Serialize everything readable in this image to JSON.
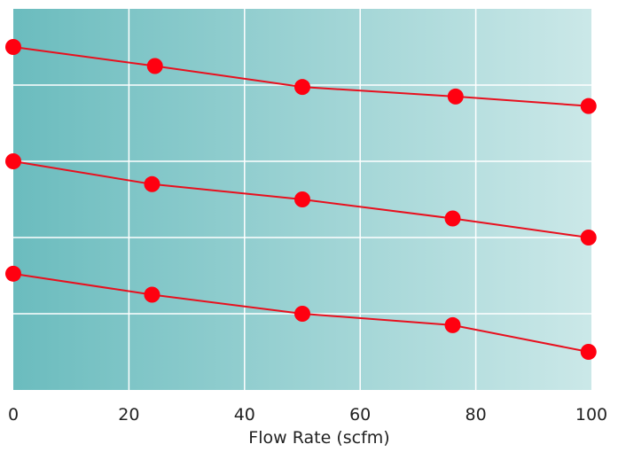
{
  "chart_data": {
    "type": "line",
    "title": "",
    "xlabel": "Flow Rate (scfm)",
    "ylabel": "",
    "xlim": [
      0,
      100
    ],
    "ylim": [
      0,
      100
    ],
    "x_ticks": [
      0,
      20,
      40,
      60,
      80,
      100
    ],
    "x_tick_labels": [
      "0",
      "20",
      "40",
      "60",
      "80",
      "100"
    ],
    "y_gridlines": [
      20,
      40,
      60,
      80,
      100
    ],
    "grid": true,
    "legend": "none",
    "colors": {
      "line": "#e8101e",
      "marker": "#ff0010",
      "background_left": "#6bbcbe",
      "background_right": "#cbe8e8",
      "grid": "#ffffff",
      "text": "#222222"
    },
    "series": [
      {
        "x": [
          0,
          24.5,
          50,
          76.5,
          99.5
        ],
        "y": [
          90,
          85,
          79.5,
          77,
          74.5
        ]
      },
      {
        "x": [
          0,
          24,
          50,
          76,
          99.5
        ],
        "y": [
          60,
          54,
          50,
          45,
          40
        ]
      },
      {
        "x": [
          0,
          24,
          50,
          76,
          99.5
        ],
        "y": [
          30.5,
          25,
          20,
          17,
          10
        ]
      }
    ]
  }
}
